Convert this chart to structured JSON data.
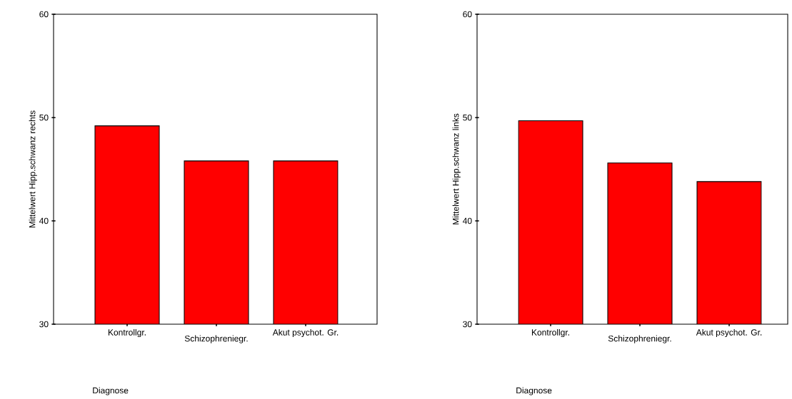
{
  "chart_data": [
    {
      "type": "bar",
      "xlabel": "Diagnose",
      "ylabel": "Mittelwert Hipp.schwanz rechts",
      "categories": [
        "Kontrollgr.",
        "Schizophreniegr.",
        "Akut psychot. Gr."
      ],
      "values": [
        49.2,
        45.8,
        45.8
      ],
      "color": "#ff0000",
      "ylim": [
        30,
        60
      ],
      "yticks": [
        30,
        40,
        50,
        60
      ],
      "grid": false
    },
    {
      "type": "bar",
      "xlabel": "Diagnose",
      "ylabel": "Mittelwert Hipp.schwanz links",
      "categories": [
        "Kontrollgr.",
        "Schizophreniegr.",
        "Akut psychot. Gr."
      ],
      "values": [
        49.7,
        45.6,
        43.8
      ],
      "color": "#ff0000",
      "ylim": [
        30,
        60
      ],
      "yticks": [
        30,
        40,
        50,
        60
      ],
      "grid": false
    }
  ]
}
